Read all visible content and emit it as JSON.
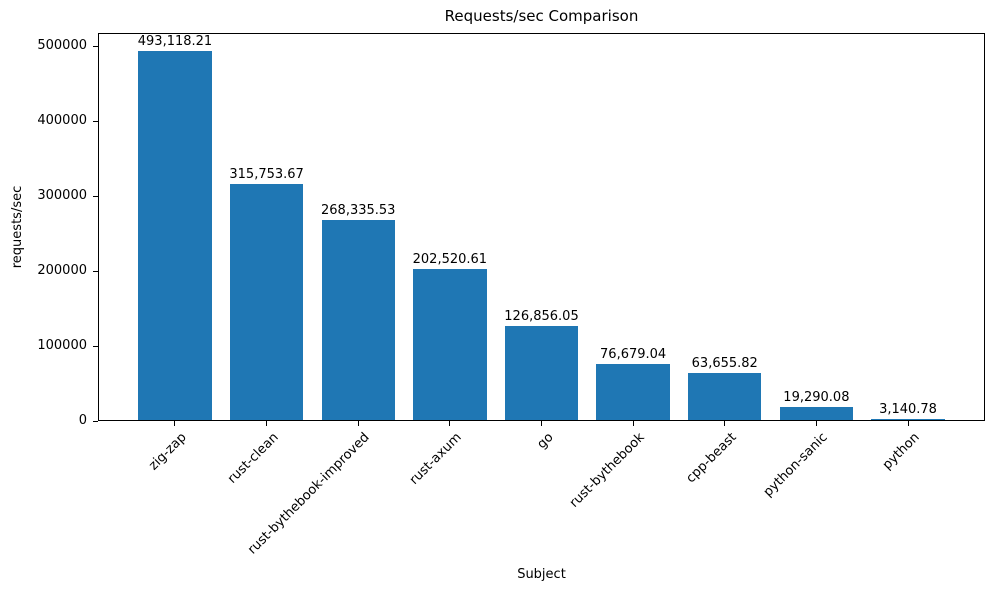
{
  "chart_data": {
    "type": "bar",
    "title": "Requests/sec Comparison",
    "xlabel": "Subject",
    "ylabel": "requests/sec",
    "categories": [
      "zig-zap",
      "rust-clean",
      "rust-bythebook-improved",
      "rust-axum",
      "go",
      "rust-bythebook",
      "cpp-beast",
      "python-sanic",
      "python"
    ],
    "values": [
      493118.21,
      315753.67,
      268335.53,
      202520.61,
      126856.05,
      76679.04,
      63655.82,
      19290.08,
      3140.78
    ],
    "value_labels": [
      "493,118.21",
      "315,753.67",
      "268,335.53",
      "202,520.61",
      "126,856.05",
      "76,679.04",
      "63,655.82",
      "19,290.08",
      "3,140.78"
    ],
    "bar_color": "#1f77b4",
    "text_color": "#000000",
    "ylim": [
      0,
      517774
    ],
    "yticks": [
      0,
      100000,
      200000,
      300000,
      400000,
      500000
    ],
    "ytick_labels": [
      "0",
      "100000",
      "200000",
      "300000",
      "400000",
      "500000"
    ],
    "grid": false,
    "legend": "none"
  }
}
